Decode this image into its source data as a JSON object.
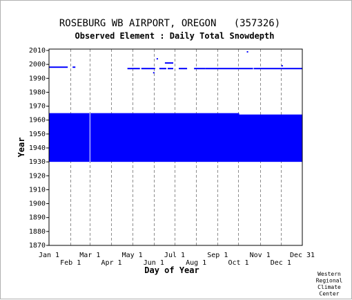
{
  "chart_data": {
    "type": "heatmap",
    "title": "ROSEBURG WB AIRPORT, OREGON   (357326)",
    "subtitle": "Observed Element : Daily Total Snowdepth",
    "xlabel": "Day of Year",
    "ylabel": "Year",
    "x_range": [
      1,
      366
    ],
    "ylim": [
      1870,
      2011
    ],
    "grid": "dashed vertical lines at month starts",
    "x_ticks": [
      {
        "label": "Jan 1",
        "day": 1,
        "row": "upper"
      },
      {
        "label": "Feb 1",
        "day": 32,
        "row": "lower"
      },
      {
        "label": "Mar 1",
        "day": 60,
        "row": "upper"
      },
      {
        "label": "Apr 1",
        "day": 91,
        "row": "lower"
      },
      {
        "label": "May 1",
        "day": 121,
        "row": "upper"
      },
      {
        "label": "Jun 1",
        "day": 152,
        "row": "lower"
      },
      {
        "label": "Jul 1",
        "day": 182,
        "row": "upper"
      },
      {
        "label": "Aug 1",
        "day": 213,
        "row": "lower"
      },
      {
        "label": "Sep 1",
        "day": 244,
        "row": "upper"
      },
      {
        "label": "Oct 1",
        "day": 274,
        "row": "lower"
      },
      {
        "label": "Nov 1",
        "day": 305,
        "row": "upper"
      },
      {
        "label": "Dec 1",
        "day": 335,
        "row": "lower"
      },
      {
        "label": "Dec 31",
        "day": 366,
        "row": "upper"
      }
    ],
    "y_ticks": [
      "1870",
      "1880",
      "1890",
      "1900",
      "1910",
      "1920",
      "1930",
      "1940",
      "1950",
      "1960",
      "1970",
      "1980",
      "1990",
      "2000",
      "2010"
    ],
    "data_color": "#0000ff",
    "data_blocks": [
      {
        "day_start": 1,
        "day_end": 275,
        "year_start": 1930,
        "year_end": 1965
      },
      {
        "day_start": 275,
        "day_end": 366,
        "year_start": 1930,
        "year_end": 1964
      }
    ],
    "data_segments": [
      {
        "day_start": 1,
        "day_end": 28,
        "year": 1998
      },
      {
        "day_start": 35,
        "day_end": 39,
        "year": 1998
      },
      {
        "day_start": 114,
        "day_end": 132,
        "year": 1997
      },
      {
        "day_start": 134,
        "day_end": 154,
        "year": 1997
      },
      {
        "day_start": 160,
        "day_end": 170,
        "year": 1997
      },
      {
        "day_start": 172,
        "day_end": 180,
        "year": 1997
      },
      {
        "day_start": 168,
        "day_end": 180,
        "year": 2001
      },
      {
        "day_start": 188,
        "day_end": 200,
        "year": 1997
      },
      {
        "day_start": 210,
        "day_end": 226,
        "year": 1997
      },
      {
        "day_start": 226,
        "day_end": 295,
        "year": 1997
      },
      {
        "day_start": 296,
        "day_end": 366,
        "year": 1997
      }
    ],
    "data_points": [
      {
        "day": 157,
        "year": 2004
      },
      {
        "day": 152,
        "year": 1994
      },
      {
        "day": 287,
        "year": 2009
      },
      {
        "day": 337,
        "year": 1999
      }
    ],
    "gaps": [
      {
        "day": 60,
        "year_start": 1930,
        "year_end": 1965
      }
    ],
    "credit": [
      "Western",
      "Regional",
      "Climate",
      "Center"
    ]
  }
}
